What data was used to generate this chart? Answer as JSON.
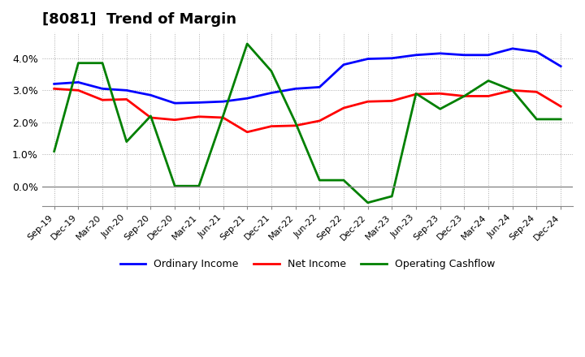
{
  "title": "[8081]  Trend of Margin",
  "x_labels": [
    "Sep-19",
    "Dec-19",
    "Mar-20",
    "Jun-20",
    "Sep-20",
    "Dec-20",
    "Mar-21",
    "Jun-21",
    "Sep-21",
    "Dec-21",
    "Mar-22",
    "Jun-22",
    "Sep-22",
    "Dec-22",
    "Mar-23",
    "Jun-23",
    "Sep-23",
    "Dec-23",
    "Mar-24",
    "Jun-24",
    "Sep-24",
    "Dec-24"
  ],
  "ordinary_income": [
    0.032,
    0.0325,
    0.0305,
    0.03,
    0.0285,
    0.026,
    0.0262,
    0.0265,
    0.0275,
    0.0292,
    0.0305,
    0.031,
    0.038,
    0.0398,
    0.04,
    0.041,
    0.0415,
    0.041,
    0.041,
    0.043,
    0.042,
    0.0375
  ],
  "net_income": [
    0.0305,
    0.03,
    0.027,
    0.0272,
    0.0215,
    0.0208,
    0.0218,
    0.0215,
    0.017,
    0.0188,
    0.019,
    0.0205,
    0.0245,
    0.0265,
    0.0267,
    0.0288,
    0.029,
    0.0282,
    0.0282,
    0.03,
    0.0295,
    0.025
  ],
  "operating_cashflow": [
    0.011,
    0.0385,
    0.0385,
    0.014,
    0.022,
    0.0002,
    0.0002,
    0.022,
    0.0445,
    0.036,
    0.02,
    0.002,
    0.002,
    -0.005,
    -0.003,
    0.029,
    0.0242,
    0.0282,
    0.033,
    0.03,
    0.021,
    0.021
  ],
  "ordinary_income_color": "#0000ff",
  "net_income_color": "#ff0000",
  "operating_cashflow_color": "#008000",
  "background_color": "#ffffff",
  "plot_background_color": "#ffffff",
  "grid_color": "#aaaaaa",
  "ylim": [
    -0.006,
    0.048
  ],
  "yticks": [
    0.0,
    0.01,
    0.02,
    0.03,
    0.04
  ],
  "ytick_labels": [
    "0.0%",
    "1.0%",
    "2.0%",
    "3.0%",
    "4.0%"
  ],
  "title_fontsize": 13,
  "legend_labels": [
    "Ordinary Income",
    "Net Income",
    "Operating Cashflow"
  ],
  "line_width": 2.0
}
